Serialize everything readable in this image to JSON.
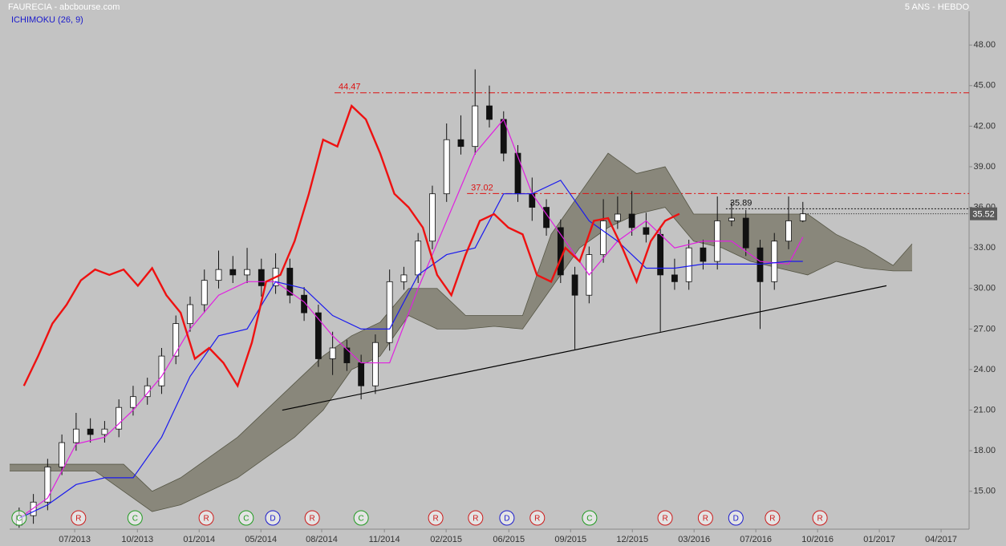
{
  "chart_data": {
    "type": "candlestick",
    "title": "FAURECIA - abcbourse.com",
    "subtitle": "5 ANS - HEBDO",
    "indicator": "ICHIMOKU (26, 9)",
    "xlim": [
      0,
      202
    ],
    "ylim": [
      12.2,
      50.5
    ],
    "xticks": [
      {
        "value": 13.7,
        "label": "07/2013"
      },
      {
        "value": 26.9,
        "label": "10/2013"
      },
      {
        "value": 39.9,
        "label": "01/2014"
      },
      {
        "value": 52.9,
        "label": "05/2014"
      },
      {
        "value": 65.7,
        "label": "08/2014"
      },
      {
        "value": 78.9,
        "label": "11/2014"
      },
      {
        "value": 91.9,
        "label": "02/2015"
      },
      {
        "value": 105.1,
        "label": "06/2015"
      },
      {
        "value": 118.1,
        "label": "09/2015"
      },
      {
        "value": 131.1,
        "label": "12/2015"
      },
      {
        "value": 144.1,
        "label": "03/2016"
      },
      {
        "value": 157.1,
        "label": "07/2016"
      },
      {
        "value": 170.1,
        "label": "10/2016"
      },
      {
        "value": 183.1,
        "label": "01/2017"
      },
      {
        "value": 196.1,
        "label": "04/2017"
      }
    ],
    "yticks": [
      {
        "value": 15,
        "label": "15.00"
      },
      {
        "value": 18,
        "label": "18.00"
      },
      {
        "value": 21,
        "label": "21.00"
      },
      {
        "value": 24,
        "label": "24.00"
      },
      {
        "value": 27,
        "label": "27.00"
      },
      {
        "value": 30,
        "label": "30.00"
      },
      {
        "value": 33,
        "label": "33.00"
      },
      {
        "value": 36,
        "label": "36.00"
      },
      {
        "value": 39,
        "label": "39.00"
      },
      {
        "value": 42,
        "label": "42.00"
      },
      {
        "value": 45,
        "label": "45.00"
      },
      {
        "value": 48,
        "label": "48.00"
      }
    ],
    "up_color": "#ffffff",
    "down_color": "#111111",
    "x": [
      2,
      5,
      8,
      11,
      14,
      17,
      20,
      23,
      26,
      29,
      32,
      35,
      38,
      41,
      44,
      47,
      50,
      53,
      56,
      59,
      62,
      65,
      68,
      71,
      74,
      77,
      80,
      83,
      86,
      89,
      92,
      95,
      98,
      101,
      104,
      107,
      110,
      113,
      116,
      119,
      122,
      125,
      128,
      131,
      134,
      137,
      140,
      143,
      146,
      149,
      152,
      155,
      158,
      161,
      164,
      167
    ],
    "open": [
      12.5,
      13.2,
      14.2,
      16.8,
      18.6,
      19.6,
      19.2,
      19.6,
      21.2,
      22,
      22.8,
      25,
      27.4,
      28.8,
      30.6,
      31.4,
      31,
      31.4,
      30.2,
      31.5,
      29.5,
      28.2,
      24.8,
      25.6,
      24.5,
      22.8,
      26,
      30.5,
      31,
      33.5,
      37,
      41,
      40.5,
      43.5,
      42.5,
      40,
      37,
      36,
      34.5,
      31,
      29.5,
      32.5,
      35,
      35.5,
      34.5,
      34,
      31,
      30.5,
      33,
      32,
      35,
      35.2,
      33,
      30.5,
      33.5,
      35
    ],
    "high": [
      13.8,
      14.8,
      17.4,
      19.2,
      20.8,
      20.4,
      20.2,
      21.8,
      22.8,
      23.4,
      25.6,
      28.0,
      29.4,
      31.4,
      32.8,
      32.4,
      33.0,
      32.2,
      32.6,
      32.2,
      30.1,
      28.8,
      26.8,
      26.2,
      25.1,
      26.6,
      31.4,
      31.6,
      34.1,
      37.6,
      42.2,
      42.8,
      46.2,
      45.0,
      43.1,
      40.6,
      38.2,
      36.6,
      35.1,
      31.6,
      33.1,
      36.6,
      36.8,
      37.2,
      35.6,
      34.6,
      32.2,
      33.6,
      33.6,
      36.8,
      36.4,
      35.8,
      33.6,
      34.1,
      36.8,
      36.4
    ],
    "low": [
      12.3,
      12.6,
      13.6,
      16.2,
      18.0,
      18.6,
      18.6,
      19.0,
      20.6,
      21.4,
      22.2,
      24.4,
      26.8,
      28.2,
      30.0,
      30.4,
      30.4,
      29.4,
      29.6,
      28.9,
      27.6,
      24.2,
      23.6,
      23.9,
      21.8,
      22.2,
      25.4,
      29.9,
      30.4,
      32.9,
      36.4,
      39.9,
      39.9,
      41.9,
      39.4,
      36.4,
      35.0,
      33.9,
      30.4,
      25.5,
      28.9,
      31.9,
      34.4,
      33.9,
      33.4,
      26.8,
      29.9,
      29.9,
      31.4,
      31.4,
      34.6,
      32.4,
      27.0,
      29.9,
      32.9,
      34.9
    ],
    "close": [
      13.2,
      14.2,
      16.8,
      18.6,
      19.6,
      19.2,
      19.6,
      21.2,
      22,
      22.8,
      25,
      27.4,
      28.8,
      30.6,
      31.4,
      31,
      31.4,
      30.2,
      31.5,
      29.5,
      28.2,
      24.8,
      25.6,
      24.5,
      22.8,
      26,
      30.5,
      31,
      33.5,
      37,
      41,
      40.5,
      43.5,
      42.5,
      40,
      37,
      36,
      34.5,
      31,
      29.5,
      32.5,
      35,
      35.5,
      34.5,
      34,
      31,
      30.5,
      33,
      32,
      35,
      35.2,
      33,
      30.5,
      33.5,
      35,
      35.52
    ],
    "cloud": {
      "color": "#7f7d6e",
      "edge_color": "#555544",
      "x": [
        0,
        6,
        12,
        18,
        24,
        30,
        36,
        42,
        48,
        54,
        60,
        66,
        72,
        78,
        84,
        90,
        96,
        102,
        108,
        114,
        120,
        126,
        132,
        138,
        144,
        150,
        156,
        162,
        168,
        174,
        180,
        186,
        190
      ],
      "span_a": [
        16.5,
        16.5,
        16.5,
        16.5,
        15,
        13.5,
        14,
        15,
        16,
        17.5,
        19,
        21,
        24,
        25,
        28,
        27,
        27,
        27.2,
        27,
        30,
        33,
        34.5,
        35.5,
        36,
        33.5,
        33,
        32,
        31.5,
        31,
        32,
        31.5,
        31.3,
        31.3
      ],
      "span_b": [
        17,
        17,
        17,
        17,
        17,
        15,
        16,
        17.5,
        19,
        21,
        23,
        25,
        26.5,
        27.5,
        30,
        30,
        28,
        28,
        28,
        34,
        37,
        40,
        38.5,
        39,
        35.5,
        35.5,
        35.5,
        35.5,
        35.5,
        34,
        33,
        31.7,
        33.3
      ]
    },
    "overlays": [
      {
        "color": "#e020e0",
        "width": 1.2,
        "x": [
          2,
          8,
          14,
          20,
          26,
          32,
          38,
          44,
          50,
          56,
          62,
          68,
          74,
          80,
          86,
          92,
          98,
          104,
          110,
          116,
          122,
          128,
          134,
          140,
          146,
          152,
          158,
          164,
          167
        ],
        "values": [
          13,
          14.5,
          18.5,
          19,
          21,
          23.5,
          27,
          29.5,
          30.5,
          30.5,
          29,
          26.5,
          24.5,
          24.5,
          30,
          35,
          40,
          42.5,
          37,
          34,
          31,
          33.5,
          35,
          33,
          33.5,
          33.5,
          32,
          31.8,
          33.8
        ]
      },
      {
        "color": "#1a1aee",
        "width": 1.2,
        "x": [
          2,
          8,
          14,
          20,
          26,
          32,
          38,
          44,
          50,
          56,
          62,
          68,
          74,
          80,
          86,
          92,
          98,
          104,
          110,
          116,
          122,
          128,
          134,
          140,
          146,
          152,
          158,
          164,
          167
        ],
        "values": [
          13,
          14,
          15.5,
          16,
          16,
          19,
          23.5,
          26.5,
          27,
          30.5,
          30,
          28,
          27,
          27,
          31,
          32.5,
          33,
          37,
          37,
          38,
          35,
          33.5,
          31.5,
          31.5,
          31.8,
          31.8,
          31.8,
          32,
          32
        ]
      },
      {
        "color": "#ee1111",
        "width": 2.4,
        "x": [
          3,
          6,
          9,
          12,
          15,
          18,
          21,
          24,
          27,
          30,
          33,
          36,
          39,
          42,
          45,
          48,
          51,
          54,
          57,
          60,
          63,
          66,
          69,
          72,
          75,
          78,
          81,
          84,
          87,
          90,
          93,
          96,
          99,
          102,
          105,
          108,
          111,
          114,
          117,
          120,
          123,
          126,
          129,
          132,
          135,
          138,
          141
        ],
        "values": [
          22.8,
          25,
          27.4,
          28.8,
          30.6,
          31.4,
          31,
          31.4,
          30.2,
          31.5,
          29.5,
          28.2,
          24.8,
          25.6,
          24.5,
          22.8,
          26,
          30.5,
          31,
          33.5,
          37,
          41,
          40.5,
          43.5,
          42.5,
          40,
          37,
          36,
          34.5,
          31,
          29.5,
          32.5,
          35,
          35.5,
          34.5,
          34,
          31,
          30.5,
          33,
          32,
          35,
          35.2,
          33,
          30.5,
          33.5,
          35,
          35.52
        ]
      }
    ],
    "trendline": {
      "color": "#000000",
      "x": [
        57.4,
        184.6
      ],
      "values": [
        21,
        30.2
      ]
    },
    "levels": [
      {
        "value": 44.47,
        "label": "44.47",
        "x": 68.4,
        "color": "#dd1111",
        "dash": "8,3,2,3"
      },
      {
        "value": 37.02,
        "label": "37.02",
        "x": 96.3,
        "color": "#dd1111",
        "dash": "8,3,2,3"
      },
      {
        "value": 35.89,
        "label": "35.89",
        "x": 150.8,
        "color": "#111111",
        "dash": "2,2"
      }
    ],
    "last_price": {
      "value": 35.52,
      "label": "35.52"
    },
    "signal_colors": {
      "C": "#1f9a1f",
      "R": "#cc1a1a",
      "D": "#1a1acc"
    },
    "signals": [
      {
        "x": 2.0,
        "label": "C"
      },
      {
        "x": 14.5,
        "label": "R"
      },
      {
        "x": 26.4,
        "label": "C"
      },
      {
        "x": 41.4,
        "label": "R"
      },
      {
        "x": 49.8,
        "label": "C"
      },
      {
        "x": 55.4,
        "label": "D"
      },
      {
        "x": 63.7,
        "label": "R"
      },
      {
        "x": 74,
        "label": "C"
      },
      {
        "x": 89.7,
        "label": "R"
      },
      {
        "x": 98.1,
        "label": "R"
      },
      {
        "x": 104.7,
        "label": "D"
      },
      {
        "x": 111.1,
        "label": "R"
      },
      {
        "x": 122.1,
        "label": "C"
      },
      {
        "x": 138,
        "label": "R"
      },
      {
        "x": 146.5,
        "label": "R"
      },
      {
        "x": 152.9,
        "label": "D"
      },
      {
        "x": 160.6,
        "label": "R"
      },
      {
        "x": 170.6,
        "label": "R"
      }
    ]
  }
}
